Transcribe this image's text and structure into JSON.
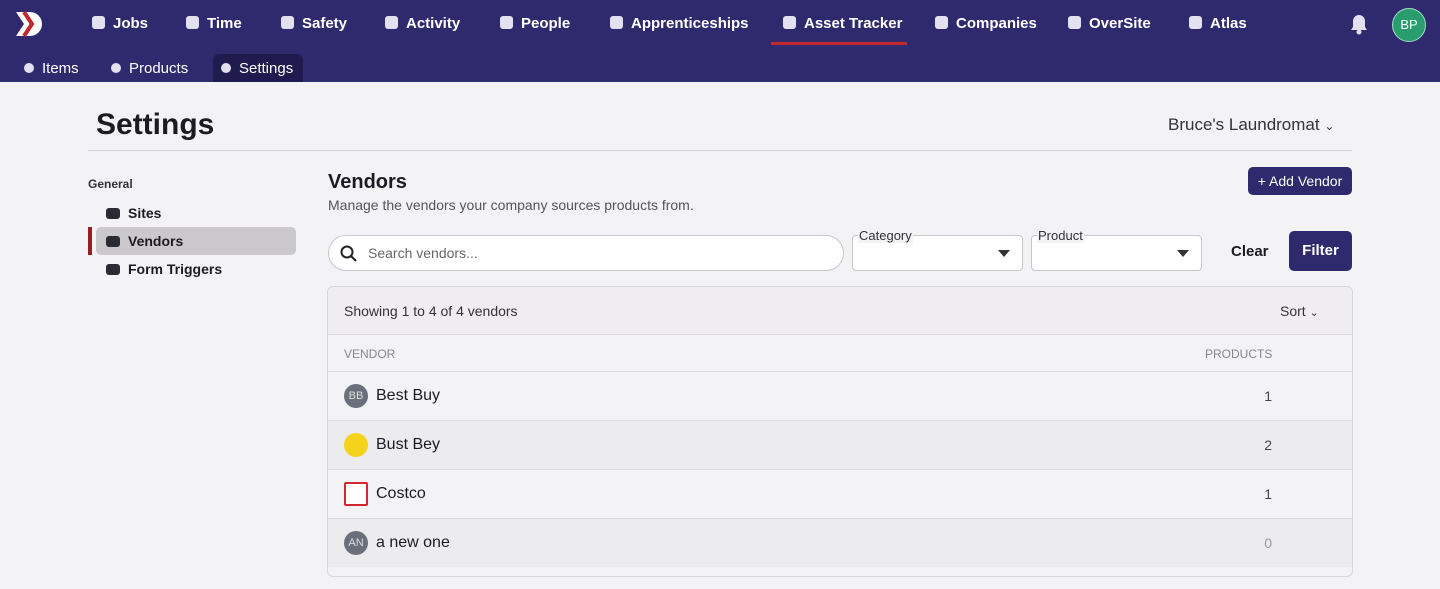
{
  "nav": {
    "items": [
      "Jobs",
      "Time",
      "Safety",
      "Activity",
      "People",
      "Apprenticeships",
      "Asset Tracker",
      "Companies",
      "OverSite",
      "Atlas"
    ],
    "active": "Asset Tracker",
    "avatar": "BP"
  },
  "subnav": {
    "items": [
      "Items",
      "Products",
      "Settings"
    ],
    "active": "Settings"
  },
  "header": {
    "title": "Settings",
    "company": "Bruce's Laundromat"
  },
  "sidebar": {
    "group": "General",
    "items": [
      "Sites",
      "Vendors",
      "Form Triggers"
    ],
    "active": "Vendors"
  },
  "section": {
    "title": "Vendors",
    "description": "Manage the vendors your company sources products from.",
    "add_button": "+ Add Vendor"
  },
  "filters": {
    "search_placeholder": "Search vendors...",
    "category_label": "Category",
    "product_label": "Product",
    "clear": "Clear",
    "filter": "Filter"
  },
  "table": {
    "summary": "Showing 1 to 4 of 4 vendors",
    "sort": "Sort",
    "columns": [
      "VENDOR",
      "PRODUCTS"
    ],
    "rows": [
      {
        "initials": "BB",
        "name": "Best Buy",
        "products": 1
      },
      {
        "logo": "yellow",
        "name": "Bust Bey",
        "products": 2
      },
      {
        "logo": "red",
        "name": "Costco",
        "products": 1
      },
      {
        "initials": "AN",
        "name": "a new one",
        "products": 0
      }
    ]
  }
}
